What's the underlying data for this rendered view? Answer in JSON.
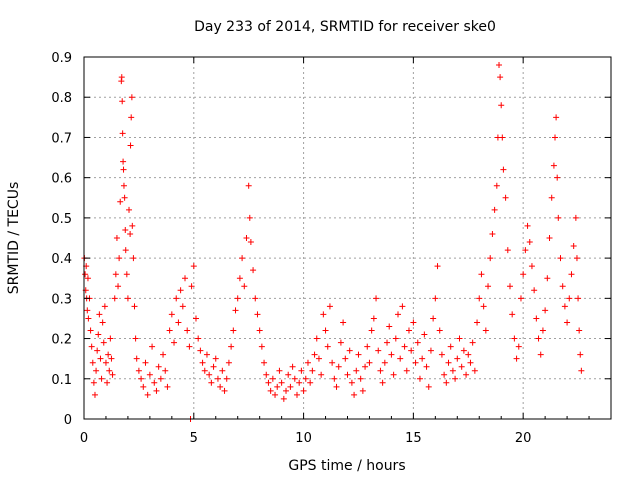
{
  "chart_data": {
    "type": "scatter",
    "title": "Day 233 of 2014, SRMTID for receiver ske0",
    "xlabel": "GPS time / hours",
    "ylabel": "SRMTID / TECUs",
    "xlim": [
      0,
      24
    ],
    "ylim": [
      0,
      0.9
    ],
    "x_ticks": [
      0,
      5,
      10,
      15,
      20
    ],
    "x_tick_labels": [
      "0",
      "5",
      "10",
      "15",
      "20"
    ],
    "y_ticks": [
      0,
      0.1,
      0.2,
      0.3,
      0.4,
      0.5,
      0.6,
      0.7,
      0.8,
      0.9
    ],
    "y_tick_labels": [
      "0",
      "0.1",
      "0.2",
      "0.3",
      "0.4",
      "0.5",
      "0.6",
      "0.7",
      "0.8",
      "0.9"
    ],
    "grid": true,
    "marker": "+",
    "color": "#ff0000",
    "series": [
      {
        "name": "SRMTID",
        "points": [
          [
            0.02,
            0.4
          ],
          [
            0.05,
            0.36
          ],
          [
            0.08,
            0.32
          ],
          [
            0.1,
            0.38
          ],
          [
            0.12,
            0.3
          ],
          [
            0.15,
            0.27
          ],
          [
            0.18,
            0.35
          ],
          [
            0.2,
            0.25
          ],
          [
            0.25,
            0.3
          ],
          [
            0.3,
            0.22
          ],
          [
            0.35,
            0.18
          ],
          [
            0.4,
            0.14
          ],
          [
            0.45,
            0.09
          ],
          [
            0.5,
            0.06
          ],
          [
            0.55,
            0.12
          ],
          [
            0.6,
            0.17
          ],
          [
            0.65,
            0.21
          ],
          [
            0.7,
            0.26
          ],
          [
            0.75,
            0.15
          ],
          [
            0.8,
            0.1
          ],
          [
            0.85,
            0.24
          ],
          [
            0.9,
            0.19
          ],
          [
            0.95,
            0.28
          ],
          [
            1.0,
            0.14
          ],
          [
            1.05,
            0.09
          ],
          [
            1.1,
            0.16
          ],
          [
            1.15,
            0.12
          ],
          [
            1.2,
            0.2
          ],
          [
            1.25,
            0.15
          ],
          [
            1.3,
            0.11
          ],
          [
            1.4,
            0.3
          ],
          [
            1.45,
            0.36
          ],
          [
            1.5,
            0.45
          ],
          [
            1.55,
            0.33
          ],
          [
            1.6,
            0.4
          ],
          [
            1.65,
            0.54
          ],
          [
            1.7,
            0.84
          ],
          [
            1.72,
            0.85
          ],
          [
            1.74,
            0.79
          ],
          [
            1.76,
            0.71
          ],
          [
            1.78,
            0.64
          ],
          [
            1.8,
            0.62
          ],
          [
            1.82,
            0.58
          ],
          [
            1.85,
            0.55
          ],
          [
            1.88,
            0.47
          ],
          [
            1.9,
            0.42
          ],
          [
            1.95,
            0.36
          ],
          [
            2.0,
            0.3
          ],
          [
            2.05,
            0.52
          ],
          [
            2.1,
            0.46
          ],
          [
            2.12,
            0.68
          ],
          [
            2.15,
            0.75
          ],
          [
            2.18,
            0.8
          ],
          [
            2.2,
            0.48
          ],
          [
            2.25,
            0.4
          ],
          [
            2.3,
            0.28
          ],
          [
            2.35,
            0.2
          ],
          [
            2.4,
            0.15
          ],
          [
            2.5,
            0.12
          ],
          [
            2.6,
            0.1
          ],
          [
            2.7,
            0.08
          ],
          [
            2.8,
            0.14
          ],
          [
            2.9,
            0.06
          ],
          [
            3.0,
            0.11
          ],
          [
            3.1,
            0.18
          ],
          [
            3.2,
            0.09
          ],
          [
            3.3,
            0.07
          ],
          [
            3.4,
            0.13
          ],
          [
            3.5,
            0.1
          ],
          [
            3.6,
            0.16
          ],
          [
            3.7,
            0.12
          ],
          [
            3.8,
            0.08
          ],
          [
            3.9,
            0.22
          ],
          [
            4.0,
            0.26
          ],
          [
            4.1,
            0.19
          ],
          [
            4.2,
            0.3
          ],
          [
            4.3,
            0.24
          ],
          [
            4.4,
            0.32
          ],
          [
            4.5,
            0.28
          ],
          [
            4.6,
            0.35
          ],
          [
            4.7,
            0.22
          ],
          [
            4.8,
            0.18
          ],
          [
            4.85,
            0.0
          ],
          [
            4.9,
            0.33
          ],
          [
            5.0,
            0.38
          ],
          [
            5.1,
            0.25
          ],
          [
            5.2,
            0.2
          ],
          [
            5.3,
            0.17
          ],
          [
            5.4,
            0.14
          ],
          [
            5.5,
            0.12
          ],
          [
            5.6,
            0.16
          ],
          [
            5.7,
            0.11
          ],
          [
            5.8,
            0.09
          ],
          [
            5.9,
            0.13
          ],
          [
            6.0,
            0.15
          ],
          [
            6.1,
            0.1
          ],
          [
            6.2,
            0.08
          ],
          [
            6.3,
            0.12
          ],
          [
            6.4,
            0.07
          ],
          [
            6.5,
            0.1
          ],
          [
            6.6,
            0.14
          ],
          [
            6.7,
            0.18
          ],
          [
            6.8,
            0.22
          ],
          [
            6.9,
            0.27
          ],
          [
            7.0,
            0.3
          ],
          [
            7.1,
            0.35
          ],
          [
            7.2,
            0.4
          ],
          [
            7.3,
            0.33
          ],
          [
            7.4,
            0.45
          ],
          [
            7.5,
            0.58
          ],
          [
            7.55,
            0.5
          ],
          [
            7.6,
            0.44
          ],
          [
            7.7,
            0.37
          ],
          [
            7.8,
            0.3
          ],
          [
            7.9,
            0.26
          ],
          [
            8.0,
            0.22
          ],
          [
            8.1,
            0.18
          ],
          [
            8.2,
            0.14
          ],
          [
            8.3,
            0.11
          ],
          [
            8.4,
            0.09
          ],
          [
            8.5,
            0.07
          ],
          [
            8.6,
            0.1
          ],
          [
            8.7,
            0.06
          ],
          [
            8.8,
            0.08
          ],
          [
            8.9,
            0.12
          ],
          [
            9.0,
            0.09
          ],
          [
            9.1,
            0.05
          ],
          [
            9.2,
            0.07
          ],
          [
            9.3,
            0.11
          ],
          [
            9.4,
            0.08
          ],
          [
            9.5,
            0.13
          ],
          [
            9.6,
            0.1
          ],
          [
            9.7,
            0.06
          ],
          [
            9.8,
            0.09
          ],
          [
            9.9,
            0.12
          ],
          [
            10.0,
            0.07
          ],
          [
            10.1,
            0.1
          ],
          [
            10.2,
            0.14
          ],
          [
            10.3,
            0.09
          ],
          [
            10.4,
            0.12
          ],
          [
            10.5,
            0.16
          ],
          [
            10.6,
            0.2
          ],
          [
            10.7,
            0.15
          ],
          [
            10.8,
            0.11
          ],
          [
            10.9,
            0.26
          ],
          [
            11.0,
            0.22
          ],
          [
            11.1,
            0.18
          ],
          [
            11.2,
            0.28
          ],
          [
            11.3,
            0.14
          ],
          [
            11.4,
            0.1
          ],
          [
            11.5,
            0.08
          ],
          [
            11.6,
            0.13
          ],
          [
            11.7,
            0.19
          ],
          [
            11.8,
            0.24
          ],
          [
            11.9,
            0.15
          ],
          [
            12.0,
            0.11
          ],
          [
            12.1,
            0.17
          ],
          [
            12.2,
            0.09
          ],
          [
            12.3,
            0.06
          ],
          [
            12.4,
            0.12
          ],
          [
            12.5,
            0.16
          ],
          [
            12.6,
            0.1
          ],
          [
            12.7,
            0.07
          ],
          [
            12.8,
            0.13
          ],
          [
            12.9,
            0.18
          ],
          [
            13.0,
            0.14
          ],
          [
            13.1,
            0.22
          ],
          [
            13.2,
            0.25
          ],
          [
            13.3,
            0.3
          ],
          [
            13.4,
            0.17
          ],
          [
            13.5,
            0.12
          ],
          [
            13.6,
            0.09
          ],
          [
            13.7,
            0.14
          ],
          [
            13.8,
            0.19
          ],
          [
            13.9,
            0.23
          ],
          [
            14.0,
            0.16
          ],
          [
            14.1,
            0.11
          ],
          [
            14.2,
            0.2
          ],
          [
            14.3,
            0.26
          ],
          [
            14.4,
            0.15
          ],
          [
            14.5,
            0.28
          ],
          [
            14.6,
            0.18
          ],
          [
            14.7,
            0.12
          ],
          [
            14.8,
            0.22
          ],
          [
            14.9,
            0.17
          ],
          [
            15.0,
            0.24
          ],
          [
            15.1,
            0.14
          ],
          [
            15.2,
            0.19
          ],
          [
            15.3,
            0.1
          ],
          [
            15.4,
            0.15
          ],
          [
            15.5,
            0.21
          ],
          [
            15.6,
            0.13
          ],
          [
            15.7,
            0.08
          ],
          [
            15.8,
            0.17
          ],
          [
            15.9,
            0.25
          ],
          [
            16.0,
            0.3
          ],
          [
            16.1,
            0.38
          ],
          [
            16.2,
            0.22
          ],
          [
            16.3,
            0.16
          ],
          [
            16.4,
            0.11
          ],
          [
            16.5,
            0.09
          ],
          [
            16.6,
            0.14
          ],
          [
            16.7,
            0.18
          ],
          [
            16.8,
            0.12
          ],
          [
            16.9,
            0.1
          ],
          [
            17.0,
            0.15
          ],
          [
            17.1,
            0.2
          ],
          [
            17.2,
            0.13
          ],
          [
            17.3,
            0.17
          ],
          [
            17.4,
            0.11
          ],
          [
            17.5,
            0.16
          ],
          [
            17.6,
            0.14
          ],
          [
            17.7,
            0.19
          ],
          [
            17.8,
            0.12
          ],
          [
            17.9,
            0.24
          ],
          [
            18.0,
            0.3
          ],
          [
            18.1,
            0.36
          ],
          [
            18.2,
            0.28
          ],
          [
            18.3,
            0.22
          ],
          [
            18.4,
            0.33
          ],
          [
            18.5,
            0.4
          ],
          [
            18.6,
            0.46
          ],
          [
            18.7,
            0.52
          ],
          [
            18.8,
            0.58
          ],
          [
            18.85,
            0.7
          ],
          [
            18.9,
            0.88
          ],
          [
            18.95,
            0.85
          ],
          [
            19.0,
            0.78
          ],
          [
            19.05,
            0.7
          ],
          [
            19.1,
            0.62
          ],
          [
            19.2,
            0.55
          ],
          [
            19.3,
            0.42
          ],
          [
            19.4,
            0.33
          ],
          [
            19.5,
            0.26
          ],
          [
            19.6,
            0.2
          ],
          [
            19.7,
            0.15
          ],
          [
            19.8,
            0.18
          ],
          [
            19.9,
            0.3
          ],
          [
            20.0,
            0.36
          ],
          [
            20.1,
            0.42
          ],
          [
            20.2,
            0.48
          ],
          [
            20.3,
            0.44
          ],
          [
            20.4,
            0.38
          ],
          [
            20.5,
            0.32
          ],
          [
            20.6,
            0.25
          ],
          [
            20.7,
            0.2
          ],
          [
            20.8,
            0.16
          ],
          [
            20.9,
            0.22
          ],
          [
            21.0,
            0.27
          ],
          [
            21.1,
            0.35
          ],
          [
            21.2,
            0.45
          ],
          [
            21.3,
            0.55
          ],
          [
            21.4,
            0.63
          ],
          [
            21.45,
            0.7
          ],
          [
            21.5,
            0.75
          ],
          [
            21.55,
            0.6
          ],
          [
            21.6,
            0.5
          ],
          [
            21.7,
            0.4
          ],
          [
            21.8,
            0.33
          ],
          [
            21.9,
            0.28
          ],
          [
            22.0,
            0.24
          ],
          [
            22.1,
            0.3
          ],
          [
            22.2,
            0.36
          ],
          [
            22.3,
            0.43
          ],
          [
            22.4,
            0.5
          ],
          [
            22.45,
            0.4
          ],
          [
            22.5,
            0.3
          ],
          [
            22.55,
            0.22
          ],
          [
            22.6,
            0.16
          ],
          [
            22.65,
            0.12
          ]
        ]
      }
    ]
  }
}
